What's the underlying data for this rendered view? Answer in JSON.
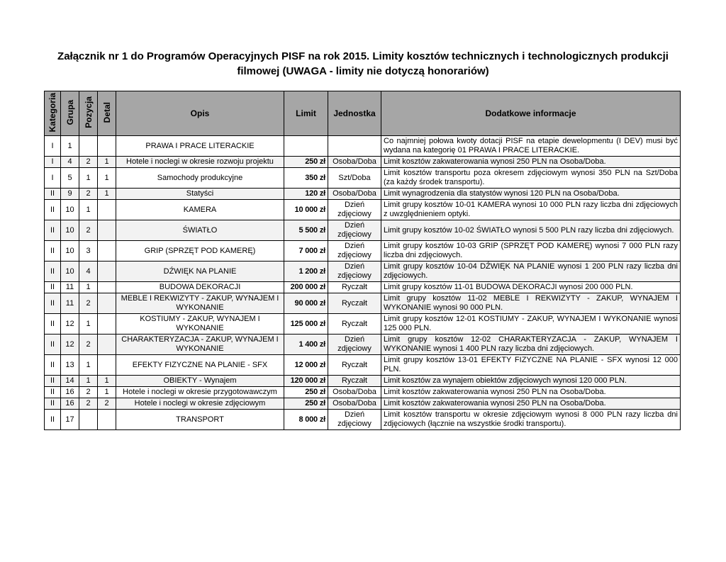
{
  "title": "Załącznik nr 1 do Programów Operacyjnych PISF na rok 2015. Limity kosztów technicznych i technologicznych produkcji filmowej (UWAGA - limity nie dotyczą honorariów)",
  "colors": {
    "header_bg": "#a6a6a6",
    "stripe_bg": "#f2f2f2",
    "border": "#000000"
  },
  "table": {
    "headers": {
      "kategoria": "Kategoria",
      "grupa": "Grupa",
      "pozycja": "Pozycja",
      "detal": "Detal",
      "opis": "Opis",
      "limit": "Limit",
      "jednostka": "Jednostka",
      "info": "Dodatkowe informacje"
    },
    "rows": [
      {
        "kategoria": "I",
        "grupa": "1",
        "pozycja": "",
        "detal": "",
        "opis": "PRAWA I PRACE LITERACKIE",
        "limit": "",
        "jednostka": "",
        "info": "Co najmniej połowa kwoty dotacji PISF na etapie dewelopmentu (I DEV) musi być wydana na kategorię 01 PRAWA I PRACE LITERACKIE."
      },
      {
        "kategoria": "I",
        "grupa": "4",
        "pozycja": "2",
        "detal": "1",
        "opis": "Hotele i noclegi w okresie rozwoju projektu",
        "limit": "250 zł",
        "jednostka": "Osoba/Doba",
        "info": "Limit kosztów zakwaterowania wynosi 250 PLN na Osoba/Doba."
      },
      {
        "kategoria": "I",
        "grupa": "5",
        "pozycja": "1",
        "detal": "1",
        "opis": "Samochody produkcyjne",
        "limit": "350 zł",
        "jednostka": "Szt/Doba",
        "info": "Limit kosztów transportu poza okresem zdjęciowym wynosi 350 PLN na Szt/Doba (za każdy środek transportu)."
      },
      {
        "kategoria": "II",
        "grupa": "9",
        "pozycja": "2",
        "detal": "1",
        "opis": "Statyści",
        "limit": "120 zł",
        "jednostka": "Osoba/Doba",
        "info": "Limit wynagrodzenia dla statystów wynosi 120 PLN na Osoba/Doba."
      },
      {
        "kategoria": "II",
        "grupa": "10",
        "pozycja": "1",
        "detal": "",
        "opis": "KAMERA",
        "limit": "10 000 zł",
        "jednostka": "Dzień zdjęciowy",
        "info": "Limit grupy kosztów 10-01 KAMERA wynosi 10 000 PLN razy liczba dni zdjęciowych z uwzględnieniem optyki."
      },
      {
        "kategoria": "II",
        "grupa": "10",
        "pozycja": "2",
        "detal": "",
        "opis": "ŚWIATŁO",
        "limit": "5 500 zł",
        "jednostka": "Dzień zdjęciowy",
        "info": "Limit grupy kosztów 10-02 ŚWIATŁO wynosi 5 500 PLN razy liczba dni zdjęciowych."
      },
      {
        "kategoria": "II",
        "grupa": "10",
        "pozycja": "3",
        "detal": "",
        "opis": "GRIP (SPRZĘT POD KAMERĘ)",
        "limit": "7 000 zł",
        "jednostka": "Dzień zdjęciowy",
        "info": "Limit grupy kosztów 10-03 GRIP (SPRZĘT POD KAMERĘ) wynosi 7 000 PLN razy liczba dni zdjęciowych."
      },
      {
        "kategoria": "II",
        "grupa": "10",
        "pozycja": "4",
        "detal": "",
        "opis": "DŹWIĘK NA PLANIE",
        "limit": "1 200 zł",
        "jednostka": "Dzień zdjęciowy",
        "info": "Limit grupy kosztów 10-04 DŹWIĘK NA PLANIE wynosi 1 200 PLN razy liczba dni zdjęciowych."
      },
      {
        "kategoria": "II",
        "grupa": "11",
        "pozycja": "1",
        "detal": "",
        "opis": "BUDOWA DEKORACJI",
        "limit": "200 000 zł",
        "jednostka": "Ryczałt",
        "info": "Limit grupy kosztów 11-01 BUDOWA DEKORACJI wynosi 200 000 PLN."
      },
      {
        "kategoria": "II",
        "grupa": "11",
        "pozycja": "2",
        "detal": "",
        "opis": "MEBLE I REKWIZYTY - ZAKUP, WYNAJEM I WYKONANIE",
        "limit": "90 000 zł",
        "jednostka": "Ryczałt",
        "info": "Limit grupy kosztów 11-02 MEBLE I REKWIZYTY - ZAKUP, WYNAJEM I WYKONANIE wynosi 90 000 PLN."
      },
      {
        "kategoria": "II",
        "grupa": "12",
        "pozycja": "1",
        "detal": "",
        "opis": "KOSTIUMY - ZAKUP, WYNAJEM I WYKONANIE",
        "limit": "125 000 zł",
        "jednostka": "Ryczałt",
        "info": "Limit grupy kosztów 12-01 KOSTIUMY - ZAKUP, WYNAJEM I WYKONANIE wynosi 125 000 PLN."
      },
      {
        "kategoria": "II",
        "grupa": "12",
        "pozycja": "2",
        "detal": "",
        "opis": "CHARAKTERYZACJA - ZAKUP, WYNAJEM I WYKONANIE",
        "limit": "1 400 zł",
        "jednostka": "Dzień zdjęciowy",
        "info": "Limit grupy kosztów 12-02 CHARAKTERYZACJA - ZAKUP, WYNAJEM I WYKONANIE wynosi 1 400 PLN razy liczba dni zdjęciowych."
      },
      {
        "kategoria": "II",
        "grupa": "13",
        "pozycja": "1",
        "detal": "",
        "opis": "EFEKTY FIZYCZNE NA PLANIE - SFX",
        "limit": "12 000 zł",
        "jednostka": "Ryczałt",
        "info": "Limit grupy kosztów 13-01 EFEKTY FIZYCZNE NA PLANIE - SFX wynosi 12 000 PLN."
      },
      {
        "kategoria": "II",
        "grupa": "14",
        "pozycja": "1",
        "detal": "1",
        "opis": "OBIEKTY - Wynajem",
        "limit": "120 000 zł",
        "jednostka": "Ryczałt",
        "info": "Limit kosztów za wynajem obiektów zdjęciowych wynosi 120 000 PLN."
      },
      {
        "kategoria": "II",
        "grupa": "16",
        "pozycja": "2",
        "detal": "1",
        "opis": "Hotele i noclegi w okresie przygotowawczym",
        "limit": "250 zł",
        "jednostka": "Osoba/Doba",
        "info": "Limit kosztów zakwaterowania wynosi 250 PLN na Osoba/Doba."
      },
      {
        "kategoria": "II",
        "grupa": "16",
        "pozycja": "2",
        "detal": "2",
        "opis": "Hotele i noclegi w okresie zdjęciowym",
        "limit": "250 zł",
        "jednostka": "Osoba/Doba",
        "info": "Limit kosztów zakwaterowania wynosi 250 PLN na Osoba/Doba."
      },
      {
        "kategoria": "II",
        "grupa": "17",
        "pozycja": "",
        "detal": "",
        "opis": "TRANSPORT",
        "limit": "8 000 zł",
        "jednostka": "Dzień zdjęciowy",
        "info": "Limit kosztów transportu w okresie zdjęciowym wynosi 8 000 PLN razy liczba dni zdjęciowych (łącznie na wszystkie środki transportu)."
      }
    ]
  }
}
